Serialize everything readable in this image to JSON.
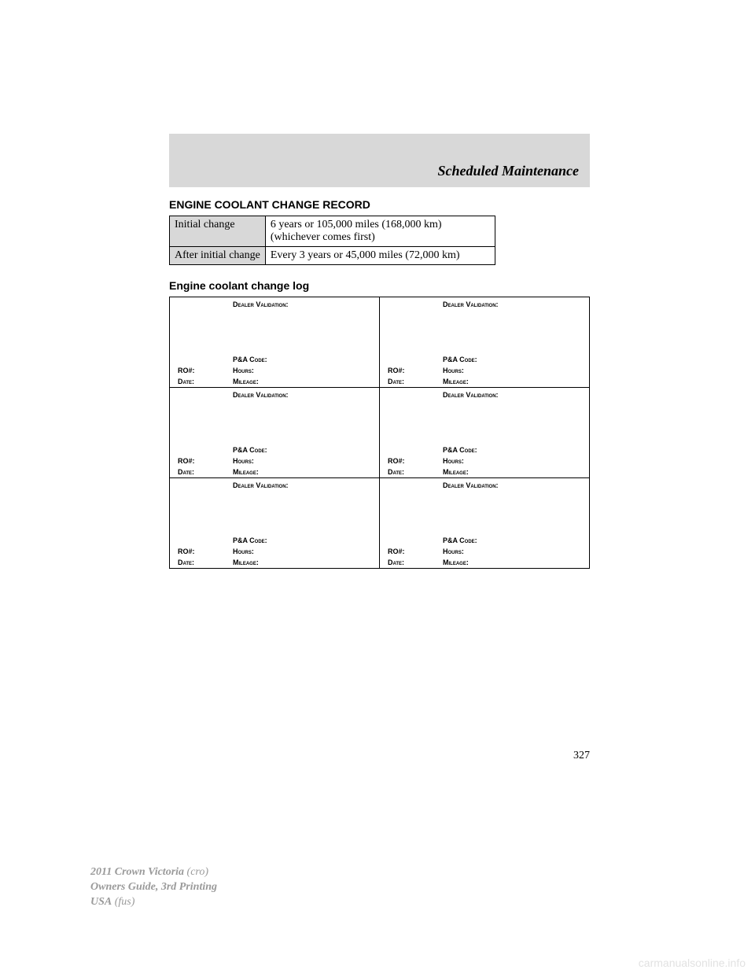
{
  "header": {
    "title": "Scheduled Maintenance"
  },
  "headings": {
    "record": "ENGINE COOLANT CHANGE RECORD",
    "log": "Engine coolant change log"
  },
  "record_table": {
    "rows": [
      {
        "label": "Initial change",
        "value": "6 years or 105,000 miles (168,000 km) (whichever comes first)"
      },
      {
        "label": "After initial change",
        "value": "Every 3 years or 45,000 miles (72,000 km)"
      }
    ]
  },
  "log_labels": {
    "dealer": "Dealer Validation:",
    "pacode": "P&A Code:",
    "ro": "RO#:",
    "hours": "Hours:",
    "date": "Date:",
    "mileage": "Mileage:"
  },
  "log_grid": {
    "rows": 3,
    "cols": 2
  },
  "page_number": "327",
  "footer": {
    "model": "2011 Crown Victoria",
    "model_suffix": "(cro)",
    "guide": "Owners Guide, 3rd Printing",
    "region": "USA",
    "region_suffix": "(fus)"
  },
  "watermark": "carmanualsonline.info",
  "colors": {
    "band_bg": "#d8d8d8",
    "text": "#000000",
    "footer_gray": "#9a9a9a",
    "watermark": "#e2e2e2"
  }
}
